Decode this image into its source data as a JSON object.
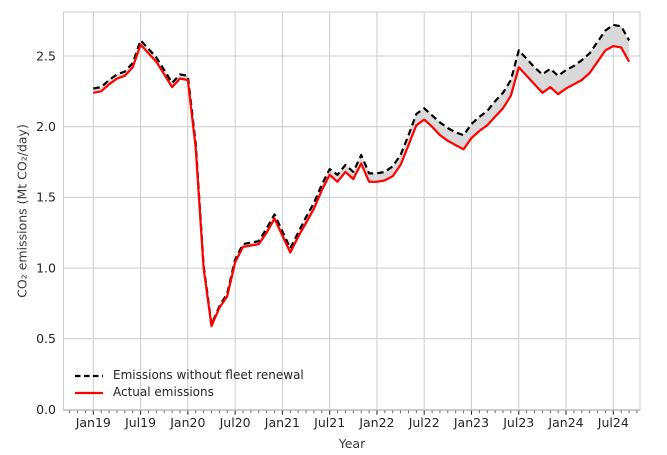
{
  "figure": {
    "background": "#ffffff"
  },
  "colors": {
    "grid": "#cccccc",
    "spine": "#cccccc",
    "tick": "#555555",
    "tick_label": "#262626",
    "axis_label": "#3a3a3a",
    "fill_between": "#d9d9d9"
  },
  "chart_data": {
    "type": "line",
    "title": "",
    "xlabel": "Year",
    "ylabel": "CO₂ emissions (Mt CO₂/day)",
    "grid": true,
    "legend_position": "lower-left",
    "ylim": [
      0,
      2.81
    ],
    "y_ticks": [
      0.0,
      0.5,
      1.0,
      1.5,
      2.0,
      2.5
    ],
    "y_tick_labels": [
      "0.0",
      "0.5",
      "1.0",
      "1.5",
      "2.0",
      "2.5"
    ],
    "x_tick_labels": [
      "Jan19",
      "Jul19",
      "Jan20",
      "Jul20",
      "Jan21",
      "Jul21",
      "Jan22",
      "Jul22",
      "Jan23",
      "Jul23",
      "Jan24",
      "Jul24"
    ],
    "x_tick_month_indices": [
      0,
      6,
      12,
      18,
      24,
      30,
      36,
      42,
      48,
      54,
      60,
      66
    ],
    "x": [
      "2019-01",
      "2019-02",
      "2019-03",
      "2019-04",
      "2019-05",
      "2019-06",
      "2019-07",
      "2019-08",
      "2019-09",
      "2019-10",
      "2019-11",
      "2019-12",
      "2020-01",
      "2020-02",
      "2020-03",
      "2020-04",
      "2020-05",
      "2020-06",
      "2020-07",
      "2020-08",
      "2020-09",
      "2020-10",
      "2020-11",
      "2020-12",
      "2021-01",
      "2021-02",
      "2021-03",
      "2021-04",
      "2021-05",
      "2021-06",
      "2021-07",
      "2021-08",
      "2021-09",
      "2021-10",
      "2021-11",
      "2021-12",
      "2022-01",
      "2022-02",
      "2022-03",
      "2022-04",
      "2022-05",
      "2022-06",
      "2022-07",
      "2022-08",
      "2022-09",
      "2022-10",
      "2022-11",
      "2022-12",
      "2023-01",
      "2023-02",
      "2023-03",
      "2023-04",
      "2023-05",
      "2023-06",
      "2023-07",
      "2023-08",
      "2023-09",
      "2023-10",
      "2023-11",
      "2023-12",
      "2024-01",
      "2024-02",
      "2024-03",
      "2024-04",
      "2024-05",
      "2024-06",
      "2024-07",
      "2024-08",
      "2024-09"
    ],
    "series": [
      {
        "name": "Emissions without fleet renewal",
        "style": "dashed",
        "color": "#000000",
        "values": [
          2.27,
          2.28,
          2.33,
          2.37,
          2.39,
          2.45,
          2.61,
          2.55,
          2.49,
          2.4,
          2.31,
          2.37,
          2.36,
          1.88,
          1.02,
          0.6,
          0.73,
          0.82,
          1.06,
          1.17,
          1.18,
          1.19,
          1.28,
          1.38,
          1.26,
          1.14,
          1.25,
          1.36,
          1.46,
          1.59,
          1.7,
          1.66,
          1.73,
          1.68,
          1.8,
          1.67,
          1.67,
          1.68,
          1.72,
          1.8,
          1.94,
          2.09,
          2.13,
          2.08,
          2.03,
          1.99,
          1.96,
          1.94,
          2.02,
          2.07,
          2.11,
          2.18,
          2.24,
          2.33,
          2.54,
          2.48,
          2.42,
          2.37,
          2.41,
          2.36,
          2.4,
          2.43,
          2.47,
          2.52,
          2.6,
          2.68,
          2.72,
          2.71,
          2.61
        ]
      },
      {
        "name": "Actual emissions",
        "style": "solid",
        "color": "#ff0000",
        "values": [
          2.24,
          2.25,
          2.3,
          2.34,
          2.36,
          2.42,
          2.58,
          2.52,
          2.46,
          2.37,
          2.28,
          2.34,
          2.33,
          1.85,
          1.0,
          0.59,
          0.72,
          0.8,
          1.04,
          1.15,
          1.16,
          1.17,
          1.25,
          1.35,
          1.23,
          1.11,
          1.22,
          1.32,
          1.42,
          1.55,
          1.66,
          1.61,
          1.68,
          1.63,
          1.74,
          1.61,
          1.61,
          1.62,
          1.65,
          1.73,
          1.87,
          2.01,
          2.05,
          2.0,
          1.94,
          1.9,
          1.87,
          1.84,
          1.92,
          1.97,
          2.01,
          2.07,
          2.13,
          2.22,
          2.42,
          2.36,
          2.3,
          2.24,
          2.28,
          2.23,
          2.27,
          2.3,
          2.33,
          2.38,
          2.46,
          2.54,
          2.57,
          2.56,
          2.46
        ]
      }
    ],
    "fill_between": {
      "between": [
        "Emissions without fleet renewal",
        "Actual emissions"
      ],
      "color": "#d9d9d9"
    }
  }
}
